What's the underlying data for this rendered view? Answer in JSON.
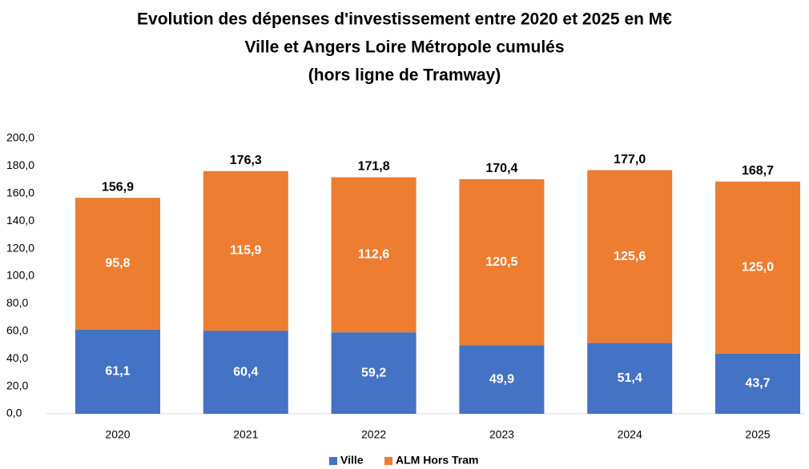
{
  "chart_data": {
    "type": "stacked_bar",
    "title": [
      "Evolution des dépenses d'investissement entre 2020 et 2025 en M€",
      "Ville et Angers Loire Métropole cumulés",
      "(hors ligne de Tramway)"
    ],
    "categories": [
      "2020",
      "2021",
      "2022",
      "2023",
      "2024",
      "2025"
    ],
    "series": [
      {
        "name": "Ville",
        "color": "#4472c4",
        "values": [
          61.1,
          60.4,
          59.2,
          49.9,
          51.4,
          43.7
        ],
        "value_labels": [
          "61,1",
          "60,4",
          "59,2",
          "49,9",
          "51,4",
          "43,7"
        ]
      },
      {
        "name": "ALM Hors Tram",
        "color": "#ed7d31",
        "values": [
          95.8,
          115.9,
          112.6,
          120.5,
          125.6,
          125.0
        ],
        "value_labels": [
          "95,8",
          "115,9",
          "112,6",
          "120,5",
          "125,6",
          "125,0"
        ]
      }
    ],
    "totals": {
      "values": [
        156.9,
        176.3,
        171.8,
        170.4,
        177.0,
        168.7
      ],
      "value_labels": [
        "156,9",
        "176,3",
        "171,8",
        "170,4",
        "177,0",
        "168,7"
      ]
    },
    "ylim": [
      0,
      200
    ],
    "yticks": [
      {
        "value": 0,
        "label": "0,0"
      },
      {
        "value": 20,
        "label": "20,0"
      },
      {
        "value": 40,
        "label": "40,0"
      },
      {
        "value": 60,
        "label": "60,0"
      },
      {
        "value": 80,
        "label": "80,0"
      },
      {
        "value": 100,
        "label": "100,0"
      },
      {
        "value": 120,
        "label": "120,0"
      },
      {
        "value": 140,
        "label": "140,0"
      },
      {
        "value": 160,
        "label": "160,0"
      },
      {
        "value": 180,
        "label": "180,0"
      },
      {
        "value": 200,
        "label": "200,0"
      }
    ],
    "legend": "bottom"
  }
}
